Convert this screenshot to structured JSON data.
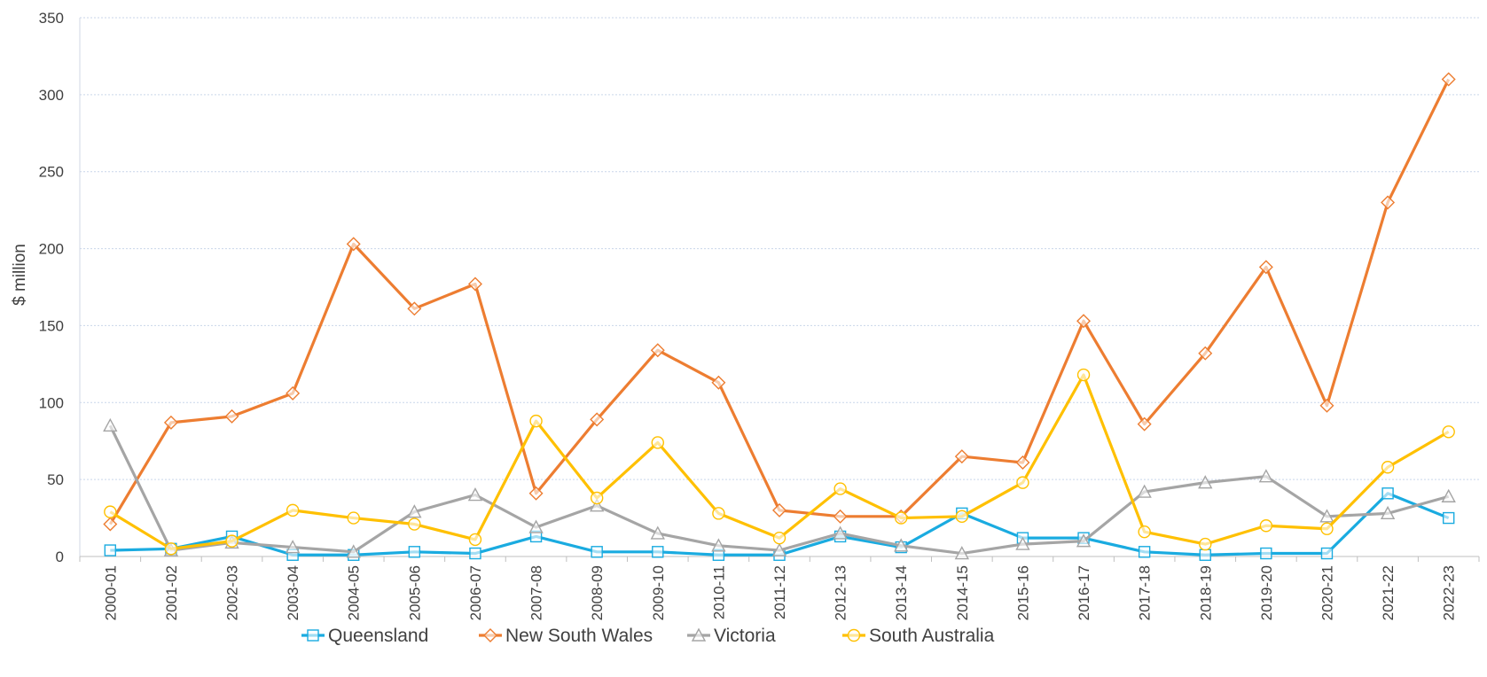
{
  "chart_data": {
    "type": "line",
    "ylabel": "$ million",
    "xlabel": "",
    "ylim": [
      0,
      350
    ],
    "yticks": [
      0,
      50,
      100,
      150,
      200,
      250,
      300,
      350
    ],
    "grid": true,
    "legend_position": "bottom",
    "categories": [
      "2000-01",
      "2001-02",
      "2002-03",
      "2003-04",
      "2004-05",
      "2005-06",
      "2006-07",
      "2007-08",
      "2008-09",
      "2009-10",
      "2010-11",
      "2011-12",
      "2012-13",
      "2013-14",
      "2014-15",
      "2015-16",
      "2016-17",
      "2017-18",
      "2018-19",
      "2019-20",
      "2020-21",
      "2021-22",
      "2022-23"
    ],
    "series": [
      {
        "name": "Queensland",
        "color": "#1aabe0",
        "marker": "square",
        "values": [
          4,
          5,
          13,
          1,
          1,
          3,
          2,
          13,
          3,
          3,
          1,
          1,
          13,
          6,
          28,
          12,
          12,
          3,
          1,
          2,
          2,
          41,
          25
        ]
      },
      {
        "name": "New South Wales",
        "color": "#ed7d31",
        "marker": "diamond",
        "values": [
          21,
          87,
          91,
          106,
          203,
          161,
          177,
          41,
          89,
          134,
          113,
          30,
          26,
          26,
          65,
          61,
          153,
          86,
          132,
          188,
          98,
          230,
          310
        ]
      },
      {
        "name": "Victoria",
        "color": "#a5a5a5",
        "marker": "triangle",
        "values": [
          85,
          4,
          9,
          6,
          3,
          29,
          40,
          19,
          33,
          15,
          7,
          4,
          15,
          7,
          2,
          8,
          10,
          42,
          48,
          52,
          26,
          28,
          39
        ]
      },
      {
        "name": "South Australia",
        "color": "#ffc000",
        "marker": "circle",
        "values": [
          29,
          5,
          10,
          30,
          25,
          21,
          11,
          88,
          38,
          74,
          28,
          12,
          44,
          25,
          26,
          48,
          118,
          16,
          8,
          20,
          18,
          58,
          81
        ]
      }
    ]
  }
}
